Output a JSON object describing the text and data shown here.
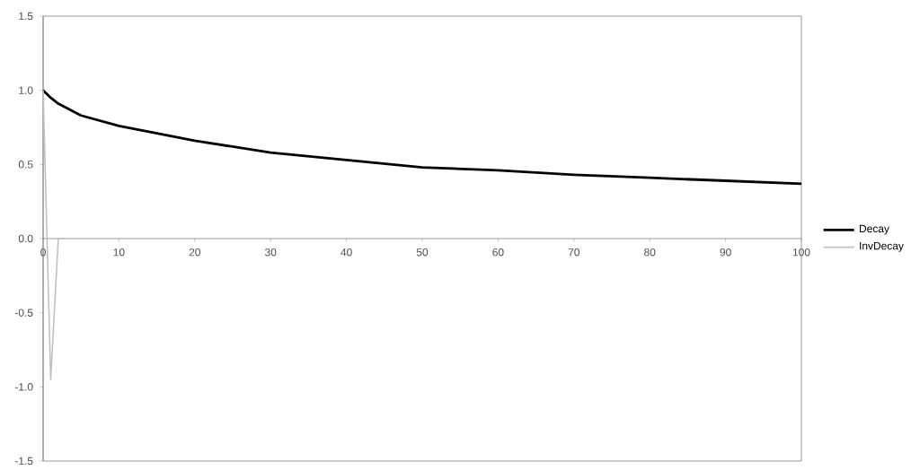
{
  "chart_data": {
    "type": "line",
    "xlim": [
      0,
      100
    ],
    "ylim": [
      -1.5,
      1.5
    ],
    "xticks": [
      0,
      10,
      20,
      30,
      40,
      50,
      60,
      70,
      80,
      90,
      100
    ],
    "yticks": [
      {
        "value": -1.5,
        "label": "-1.5"
      },
      {
        "value": -1,
        "label": "-1.0"
      },
      {
        "value": -0.5,
        "label": "-0.5"
      },
      {
        "value": 0,
        "label": "0.0"
      },
      {
        "value": 0.5,
        "label": "0.5"
      },
      {
        "value": 1,
        "label": "1.0"
      },
      {
        "value": 1.5,
        "label": "1.5"
      }
    ],
    "grid": false,
    "legend": "right",
    "marker": "none",
    "series": [
      {
        "name": "Decay",
        "color": "#000000",
        "x": [
          0,
          1,
          2,
          5,
          10,
          20,
          30,
          40,
          50,
          60,
          70,
          80,
          90,
          100
        ],
        "values": [
          1.0,
          0.95,
          0.91,
          0.83,
          0.76,
          0.66,
          0.58,
          0.53,
          0.48,
          0.46,
          0.43,
          0.41,
          0.39,
          0.37
        ]
      },
      {
        "name": "InvDecay",
        "color": "#c0c0c0",
        "x": [
          0,
          1,
          2,
          3
        ],
        "values": [
          1.0,
          -0.95,
          0,
          0
        ]
      }
    ]
  }
}
